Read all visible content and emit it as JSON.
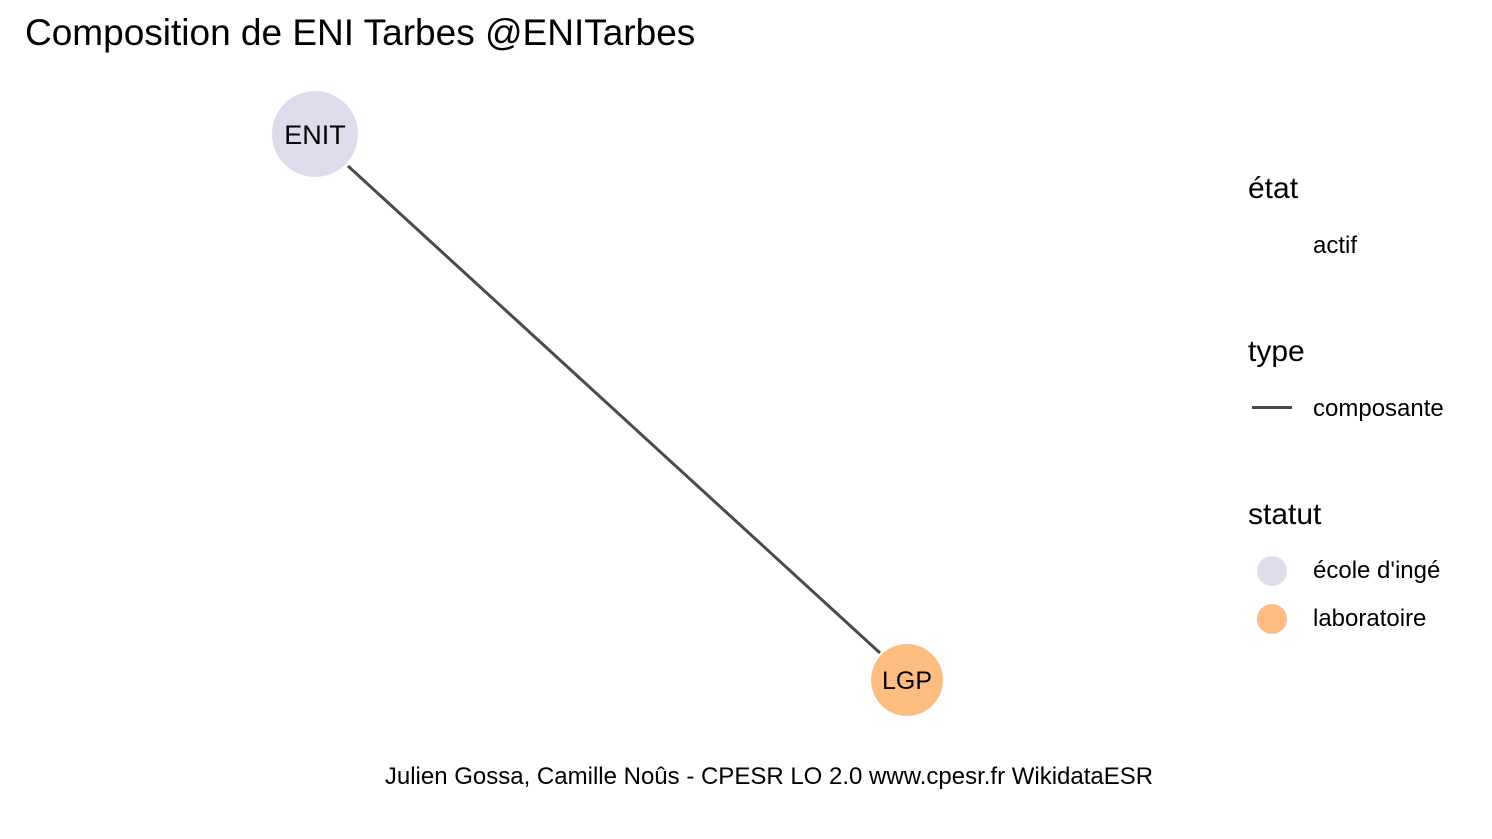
{
  "title": "Composition de ENI Tarbes @ENITarbes",
  "caption": "Julien Gossa, Camille Noûs - CPESR LO 2.0 www.cpesr.fr WikidataESR",
  "graph": {
    "nodes": [
      {
        "id": "ENIT",
        "label": "ENIT",
        "statut": "école d'ingé"
      },
      {
        "id": "LGP",
        "label": "LGP",
        "statut": "laboratoire"
      }
    ],
    "edges": [
      {
        "from": "ENIT",
        "to": "LGP",
        "type": "composante",
        "etat": "actif"
      }
    ]
  },
  "legend": {
    "etat": {
      "title": "état",
      "items": [
        {
          "label": "actif"
        }
      ]
    },
    "type": {
      "title": "type",
      "items": [
        {
          "label": "composante",
          "color": "#4a4a4a"
        }
      ]
    },
    "statut": {
      "title": "statut",
      "items": [
        {
          "label": "école d'ingé",
          "color": "#dedcec"
        },
        {
          "label": "laboratoire",
          "color": "#fdbc80"
        }
      ]
    }
  },
  "colors": {
    "edge": "#4a4a4a",
    "ecole": "#dedcec",
    "laboratoire": "#fdbc80"
  }
}
